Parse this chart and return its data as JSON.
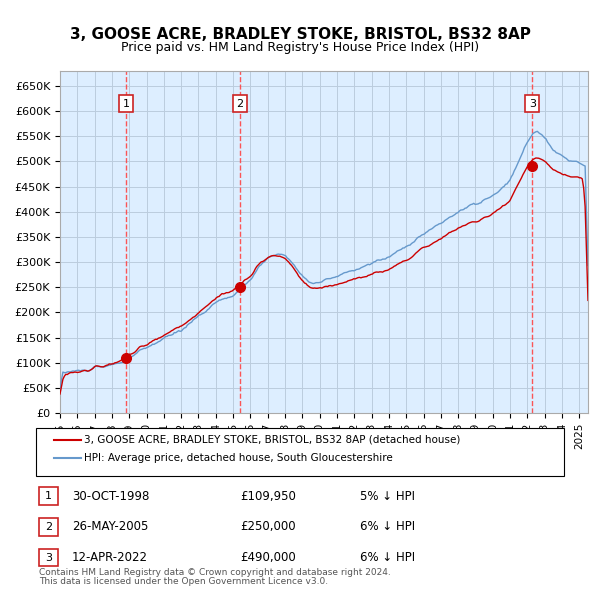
{
  "title": "3, GOOSE ACRE, BRADLEY STOKE, BRISTOL, BS32 8AP",
  "subtitle": "Price paid vs. HM Land Registry's House Price Index (HPI)",
  "legend_line1": "3, GOOSE ACRE, BRADLEY STOKE, BRISTOL, BS32 8AP (detached house)",
  "legend_line2": "HPI: Average price, detached house, South Gloucestershire",
  "footer1": "Contains HM Land Registry data © Crown copyright and database right 2024.",
  "footer2": "This data is licensed under the Open Government Licence v3.0.",
  "transactions": [
    {
      "label": "1",
      "date": "30-OCT-1998",
      "price": 109950,
      "pct": "5%",
      "dir": "↓",
      "x_year": 1998.83
    },
    {
      "label": "2",
      "date": "26-MAY-2005",
      "price": 250000,
      "pct": "6%",
      "dir": "↓",
      "x_year": 2005.4
    },
    {
      "label": "3",
      "date": "12-APR-2022",
      "price": 490000,
      "pct": "6%",
      "dir": "↓",
      "x_year": 2022.28
    }
  ],
  "red_line_color": "#cc0000",
  "blue_line_color": "#6699cc",
  "bg_color": "#ddeeff",
  "grid_color": "#bbccdd",
  "dot_color": "#cc0000",
  "vline_color": "#ff4444",
  "box_color": "#cc2222",
  "ylim": [
    0,
    680000
  ],
  "yticks": [
    0,
    50000,
    100000,
    150000,
    200000,
    250000,
    300000,
    350000,
    400000,
    450000,
    500000,
    550000,
    600000,
    650000
  ],
  "xlim_start": 1995.0,
  "xlim_end": 2025.5
}
